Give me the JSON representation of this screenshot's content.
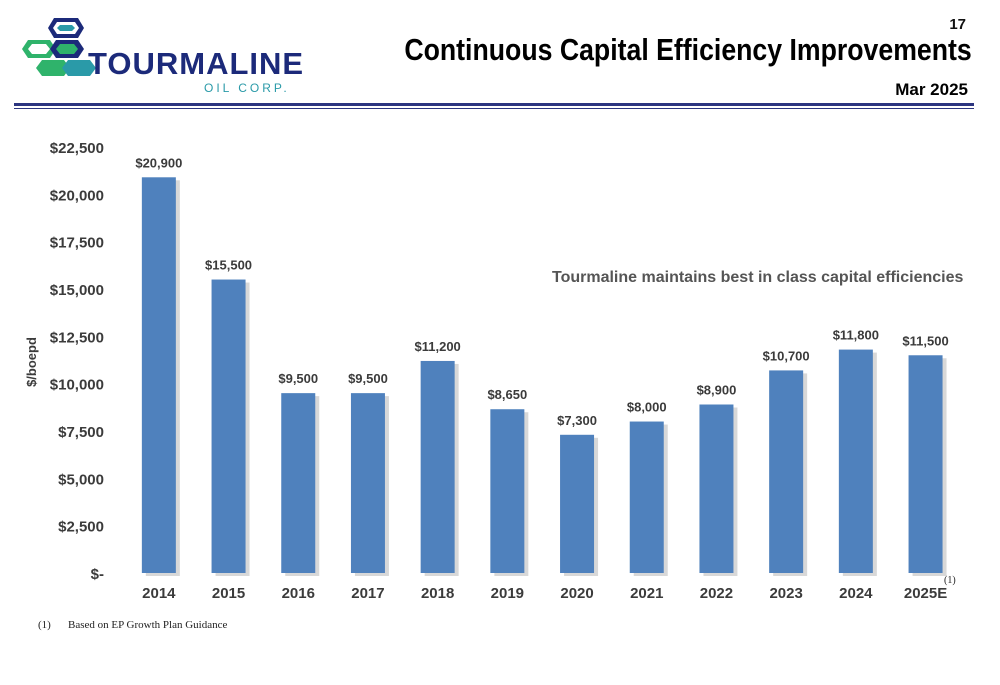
{
  "header": {
    "logo_word": "TOURMALINE",
    "logo_sub": "OIL CORP.",
    "page_number": "17",
    "title": "Continuous Capital Efficiency Improvements",
    "date": "Mar 2025"
  },
  "colors": {
    "bar": "#4f81bd",
    "bar_shadow": "#c8c8c8",
    "rule": "#2c3580",
    "logo_navy": "#1c2a7a",
    "logo_green": "#2fb36b",
    "logo_teal": "#2a9aa8"
  },
  "annotation": "Tourmaline maintains best in class capital efficiencies",
  "footnote": {
    "marker": "(1)",
    "number": "(1)",
    "text": "Based on EP Growth Plan Guidance"
  },
  "chart_data": {
    "type": "bar",
    "title": "",
    "xlabel": "",
    "ylabel": "$/boepd",
    "ylim": [
      0,
      22500
    ],
    "grid": false,
    "legend": "none",
    "categories": [
      "2014",
      "2015",
      "2016",
      "2017",
      "2018",
      "2019",
      "2020",
      "2021",
      "2022",
      "2023",
      "2024",
      "2025E"
    ],
    "values": [
      20900,
      15500,
      9500,
      9500,
      11200,
      8650,
      7300,
      8000,
      8900,
      10700,
      11800,
      11500
    ],
    "value_labels": [
      "$20,900",
      "$15,500",
      "$9,500",
      "$9,500",
      "$11,200",
      "$8,650",
      "$7,300",
      "$8,000",
      "$8,900",
      "$10,700",
      "$11,800",
      "$11,500"
    ],
    "y_ticks": [
      0,
      2500,
      5000,
      7500,
      10000,
      12500,
      15000,
      17500,
      20000,
      22500
    ],
    "y_tick_labels": [
      "$-",
      "$2,500",
      "$5,000",
      "$7,500",
      "$10,000",
      "$12,500",
      "$15,000",
      "$17,500",
      "$20,000",
      "$22,500"
    ]
  }
}
